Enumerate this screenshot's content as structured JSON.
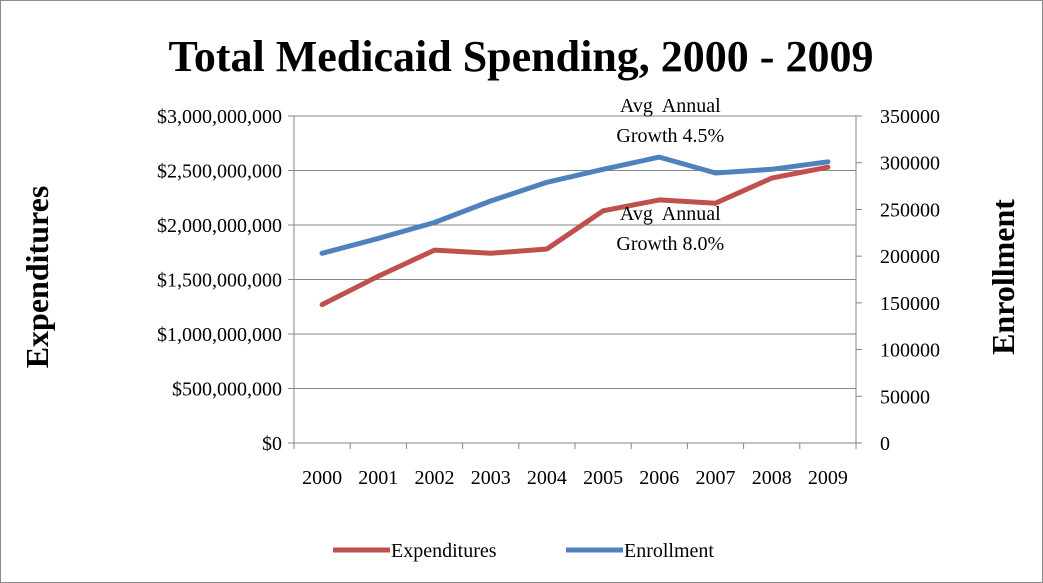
{
  "chart_data": {
    "type": "line",
    "title": "Total Medicaid Spending, 2000 - 2009",
    "ylabel_left": "Expenditures",
    "ylabel_right": "Enrollment",
    "categories": [
      "2000",
      "2001",
      "2002",
      "2003",
      "2004",
      "2005",
      "2006",
      "2007",
      "2008",
      "2009"
    ],
    "left_axis": {
      "min": 0,
      "max": 3000000000,
      "step": 500000000,
      "ticks": [
        "$0",
        "$500,000,000",
        "$1,000,000,000",
        "$1,500,000,000",
        "$2,000,000,000",
        "$2,500,000,000",
        "$3,000,000,000"
      ]
    },
    "right_axis": {
      "min": 0,
      "max": 350000,
      "step": 50000,
      "ticks": [
        "0",
        "50000",
        "100000",
        "150000",
        "200000",
        "250000",
        "300000",
        "350000"
      ]
    },
    "series": [
      {
        "name": "Expenditures",
        "axis": "left",
        "color": "#c0504d",
        "values": [
          1270000000,
          1530000000,
          1770000000,
          1740000000,
          1780000000,
          2130000000,
          2230000000,
          2200000000,
          2430000000,
          2530000000
        ]
      },
      {
        "name": "Enrollment",
        "axis": "right",
        "color": "#4f81bd",
        "values": [
          203000,
          219000,
          236000,
          259000,
          279000,
          293000,
          306000,
          289000,
          293000,
          301000
        ]
      }
    ],
    "annotations": [
      {
        "lines": [
          "Avg  Annual",
          "Growth 4.5%"
        ],
        "series": "Enrollment",
        "anchor_category": "2006"
      },
      {
        "lines": [
          "Avg  Annual",
          "Growth 8.0%"
        ],
        "series": "Expenditures",
        "anchor_category": "2006"
      }
    ],
    "grid": true,
    "legend": "bottom"
  }
}
